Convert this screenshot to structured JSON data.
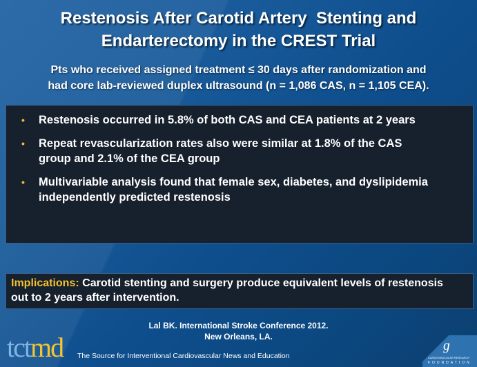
{
  "slide": {
    "title_line1": "Restenosis After Carotid Artery  Stenting and",
    "title_line2": "Endarterectomy in the CREST Trial",
    "subtitle_line1": "Pts who received assigned treatment ≤ 30 days after randomization and",
    "subtitle_line2": "had core lab-reviewed duplex ultrasound (n = 1,086 CAS, n = 1,105 CEA).",
    "bullets": [
      {
        "text": "Restenosis occurred in 5.8% of both CAS and CEA patients at 2 years"
      },
      {
        "text": "Repeat revascularization rates also were similar at 1.8% of the CAS group and 2.1% of the CEA group"
      },
      {
        "text": "Multivariable analysis found that female sex, diabetes, and dyslipidemia independently predicted restenosis"
      }
    ],
    "bullet_glyph": "•",
    "implications": {
      "label": "Implications:",
      "text": " Carotid stenting and surgery produce equivalent levels of restenosis out to 2 years after intervention."
    },
    "citation_line1": "Lal BK. International Stroke Conference 2012.",
    "citation_line2": "New Orleans, LA."
  },
  "footer": {
    "logo_part1": "tct",
    "logo_part2": "md",
    "tagline": "The Source for Interventional Cardiovascular News and Education",
    "crf_swirl": "ɡ",
    "crf_name": "CARDIOVASCULAR RESEARCH",
    "crf_foundation": "FOUNDATION"
  },
  "colors": {
    "accent_yellow": "#f2c12e",
    "box_bg": "#17202d",
    "bg_blue": "#155595"
  }
}
